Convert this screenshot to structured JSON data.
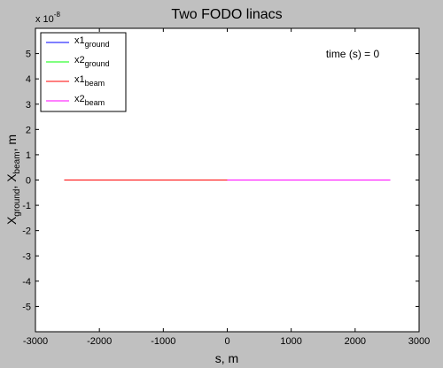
{
  "figure": {
    "background": "#c0c0c0",
    "axes_background": "#ffffff"
  },
  "chart_data": {
    "type": "line",
    "title": "Two FODO linacs",
    "xlabel": "s, m",
    "ylabel": {
      "base_x": "X",
      "sub_ground": "ground",
      "sep": ", X",
      "sub_beam": "beam",
      "tail": ", m"
    },
    "y_exponent": {
      "prefix": "x 10",
      "power": "-8"
    },
    "xlim": [
      -3000,
      3000
    ],
    "ylim": [
      -6,
      6
    ],
    "xticks": [
      -3000,
      -2000,
      -1000,
      0,
      1000,
      2000,
      3000
    ],
    "xtick_labels": [
      "-3000",
      "-2000",
      "-1000",
      "0",
      "1000",
      "2000",
      "3000"
    ],
    "yticks": [
      -5,
      -4,
      -3,
      -2,
      -1,
      0,
      1,
      2,
      3,
      4,
      5
    ],
    "ytick_labels": [
      "-5",
      "-4",
      "-3",
      "-2",
      "-1",
      "0",
      "1",
      "2",
      "3",
      "4",
      "5"
    ],
    "grid": false,
    "legend_position": "top-left",
    "annotation": "time (s) = 0",
    "series": [
      {
        "name": "x1",
        "subscript": "ground",
        "color": "#0000ff",
        "x": [
          -2550,
          0
        ],
        "y": [
          0,
          0
        ]
      },
      {
        "name": "x2",
        "subscript": "ground",
        "color": "#00ff00",
        "x": [
          0,
          2550
        ],
        "y": [
          0,
          0
        ]
      },
      {
        "name": "x1",
        "subscript": "beam",
        "color": "#ff0000",
        "x": [
          -2550,
          0
        ],
        "y": [
          0,
          0
        ]
      },
      {
        "name": "x2",
        "subscript": "beam",
        "color": "#ff00ff",
        "x": [
          0,
          2550
        ],
        "y": [
          0,
          0
        ]
      }
    ]
  }
}
